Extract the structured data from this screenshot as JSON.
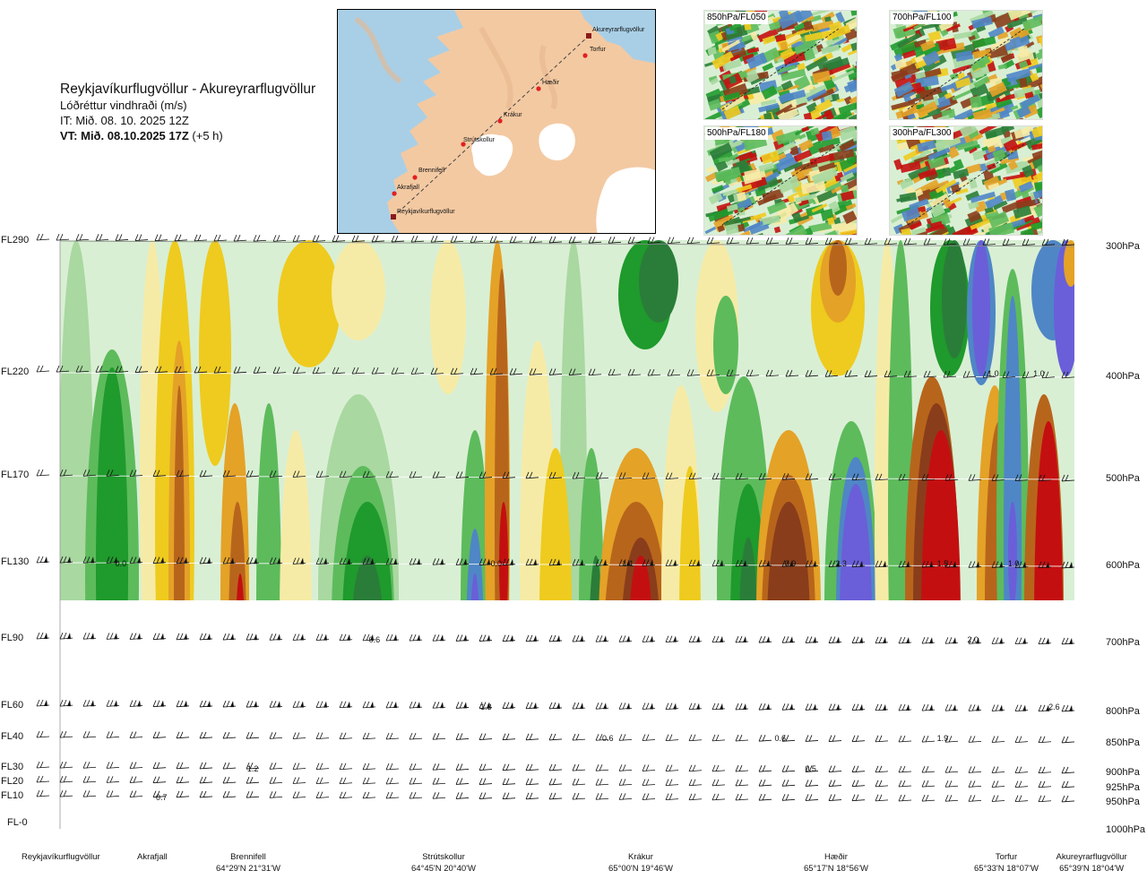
{
  "header": {
    "title": "Reykjavíkurflugvöllur - Akureyrarflugvöllur",
    "parameter": "Lóðréttur vindhraði (m/s)",
    "issue_time": "IT: Mið. 08. 10. 2025 12Z",
    "valid_prefix": "VT: Mið. 08.10.2025 17Z",
    "valid_suffix": " (+5 h)"
  },
  "map": {
    "places": [
      "Akureyrarflugvöllur",
      "Torfur",
      "Hæðir",
      "Krákur",
      "Strútskollur",
      "Brennifell",
      "Akrafjall",
      "Reykjavíkurflugvöllur"
    ],
    "colors": {
      "sea": "#a9cfe6",
      "land": "#f3c9a2",
      "ice": "#ffffff",
      "route": "#444444",
      "waypoint": "#e02020"
    }
  },
  "panels": [
    {
      "label": "850hPa/FL050"
    },
    {
      "label": "700hPa/FL100"
    },
    {
      "label": "500hPa/FL180"
    },
    {
      "label": "300hPa/FL300"
    }
  ],
  "chart_data": {
    "type": "heatmap",
    "title": "Reykjavíkurflugvöllur - Akureyrarflugvöllur",
    "variable": "Lóðréttur vindhraði (m/s)",
    "y_left_ticks": [
      "FL290",
      "FL220",
      "FL170",
      "FL130",
      "FL90",
      "FL60",
      "FL40",
      "FL30",
      "FL20",
      "FL10",
      "FL-0"
    ],
    "y_right_ticks": [
      "300hPa",
      "400hPa",
      "500hPa",
      "600hPa",
      "700hPa",
      "800hPa",
      "850hPa",
      "900hPa",
      "925hPa",
      "950hPa",
      "1000hPa"
    ],
    "x_locations": [
      {
        "name": "Reykjavíkurflugvöllur",
        "coord": ""
      },
      {
        "name": "Akrafjall",
        "coord": ""
      },
      {
        "name": "Brennifell",
        "coord": "64°29'N 21°31'W"
      },
      {
        "name": "Strútskollur",
        "coord": "64°45'N 20°40'W"
      },
      {
        "name": "Krákur",
        "coord": "65°00'N 19°46'W"
      },
      {
        "name": "Hæðir",
        "coord": "65°17'N 18°56'W"
      },
      {
        "name": "Torfur",
        "coord": "65°33'N 18°07'W"
      },
      {
        "name": "Akureyrarflugvöllur",
        "coord": "65°39'N 18°04'W"
      }
    ],
    "value_labels": [
      {
        "text": "1.0",
        "level": "FL220",
        "x": 0.92
      },
      {
        "text": "1.0",
        "level": "FL220",
        "x": 0.965
      },
      {
        "text": "0.0",
        "level": "FL130",
        "x": 0.06
      },
      {
        "text": "0.0",
        "level": "FL130",
        "x": 0.43
      },
      {
        "text": "1.1",
        "level": "FL130",
        "x": 0.56
      },
      {
        "text": "0.9",
        "level": "FL130",
        "x": 0.72
      },
      {
        "text": "2.3",
        "level": "FL130",
        "x": 0.77
      },
      {
        "text": "1.5",
        "level": "FL130",
        "x": 0.87
      },
      {
        "text": "1.0",
        "level": "FL130",
        "x": 0.94
      },
      {
        "text": "0.6",
        "level": "FL90",
        "x": 0.31
      },
      {
        "text": "2.0",
        "level": "FL90",
        "x": 0.9
      },
      {
        "text": "1.3",
        "level": "FL60",
        "x": 0.42
      },
      {
        "text": "2.6",
        "level": "FL60",
        "x": 0.98
      },
      {
        "text": "0.6",
        "level": "FL40",
        "x": 0.54
      },
      {
        "text": "0.6",
        "level": "FL40",
        "x": 0.71
      },
      {
        "text": "1.9",
        "level": "FL40",
        "x": 0.87
      },
      {
        "text": "1.2",
        "level": "FL30",
        "x": 0.19
      },
      {
        "text": "0.5",
        "level": "FL30",
        "x": 0.74
      },
      {
        "text": "0.7",
        "level": "FL10",
        "x": 0.1
      }
    ],
    "colors": {
      "down_strong": "#6a5fd8",
      "down_mid": "#4f86c6",
      "down_weak_1": "#2a7d39",
      "down_weak_2": "#1f9a2c",
      "down_weak_3": "#5dbb5c",
      "down_weak_4": "#a9d8a1",
      "near_zero": "#d9efd4",
      "up_weak_1": "#f6eba6",
      "up_weak_2": "#eecb1e",
      "up_mid": "#e4a227",
      "up_strong_1": "#b8651c",
      "up_strong_2": "#8a3d1b",
      "up_max": "#c40f10",
      "terrain": "#7f7f7f"
    }
  }
}
